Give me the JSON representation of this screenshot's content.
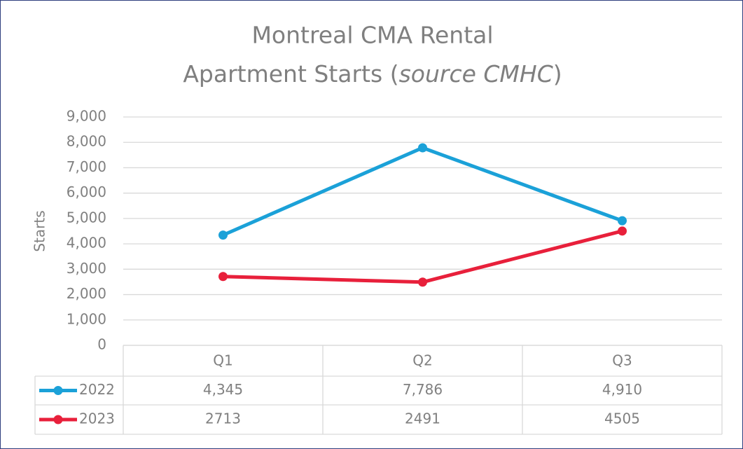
{
  "chart_data": {
    "type": "line",
    "title": [
      "Montreal CMA Rental",
      "Apartment Starts (",
      "source CMHC",
      ")"
    ],
    "y_label": "Starts",
    "categories": [
      "Q1",
      "Q2",
      "Q3"
    ],
    "series": [
      {
        "name": "2022",
        "color": "#1ba1d8",
        "values": [
          4345,
          7786,
          4910
        ],
        "value_labels": [
          "4,345",
          "7,786",
          "4,910"
        ]
      },
      {
        "name": "2023",
        "color": "#e8203b",
        "values": [
          2713,
          2491,
          4505
        ]
      }
    ],
    "ylim": [
      0,
      9000
    ],
    "yticks": [
      0,
      {
        "value": 1000,
        "label": "1,000"
      },
      {
        "value": 2000,
        "label": "2,000"
      },
      {
        "value": 3000,
        "label": "3,000"
      },
      {
        "value": 4000,
        "label": "4,000"
      },
      {
        "value": 5000,
        "label": "5,000"
      },
      {
        "value": 6000,
        "label": "6,000"
      },
      {
        "value": 7000,
        "label": "7,000"
      },
      {
        "value": 8000,
        "label": "8,000"
      },
      {
        "value": 9000,
        "label": "9,000"
      }
    ],
    "grid": true
  }
}
